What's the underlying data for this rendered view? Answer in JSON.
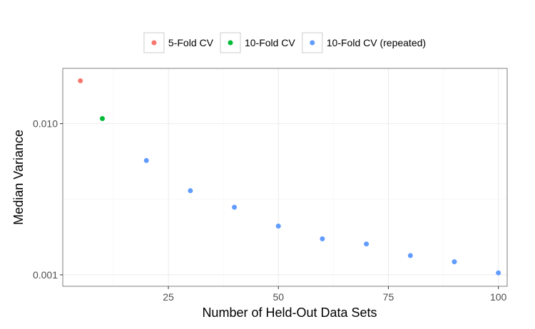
{
  "chart_data": {
    "type": "scatter",
    "xlabel": "Number of Held-Out Data Sets",
    "ylabel": "Median Variance",
    "xlim": [
      1,
      102
    ],
    "ylim": [
      0.00084,
      0.0232
    ],
    "y_scale": "log",
    "x_ticks": [
      25,
      50,
      75,
      100
    ],
    "x_tick_labels": [
      "25",
      "50",
      "75",
      "100"
    ],
    "y_ticks": [
      0.001,
      0.01
    ],
    "y_tick_labels": [
      "0.001",
      "0.010"
    ],
    "grid": true,
    "legend_position": "top",
    "series": [
      {
        "name": "5-Fold CV",
        "color": "#F8766D",
        "points": [
          {
            "x": 5,
            "y": 0.0192
          }
        ]
      },
      {
        "name": "10-Fold CV",
        "color": "#00BA38",
        "points": [
          {
            "x": 10,
            "y": 0.0108
          }
        ]
      },
      {
        "name": "10-Fold CV (repeated)",
        "color": "#619CFF",
        "points": [
          {
            "x": 20,
            "y": 0.0057
          },
          {
            "x": 30,
            "y": 0.0036
          },
          {
            "x": 40,
            "y": 0.0028
          },
          {
            "x": 50,
            "y": 0.0021
          },
          {
            "x": 60,
            "y": 0.00173
          },
          {
            "x": 70,
            "y": 0.0016
          },
          {
            "x": 80,
            "y": 0.00134
          },
          {
            "x": 90,
            "y": 0.00122
          },
          {
            "x": 100,
            "y": 0.00103
          }
        ]
      }
    ]
  }
}
